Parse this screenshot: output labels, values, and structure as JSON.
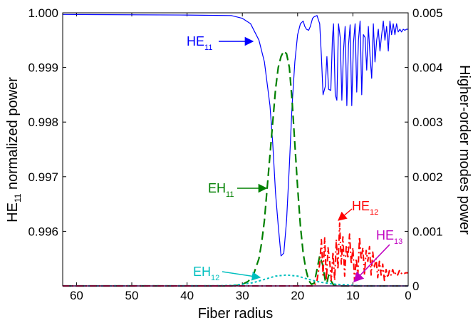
{
  "chart_data": {
    "type": "line",
    "xlabel": "Fiber radius",
    "ylabel_left": {
      "main": "HE",
      "sub": "11",
      "rest": " normalized power"
    },
    "ylabel_right": "Higher-order modes power",
    "xlim": [
      62.5,
      0
    ],
    "xticks": [
      "60",
      "50",
      "40",
      "30",
      "20",
      "10",
      "0"
    ],
    "xtick_values": [
      60,
      50,
      40,
      30,
      20,
      10,
      0
    ],
    "ylim_left": [
      0.995,
      1.0
    ],
    "yticks_left": [
      "1.000",
      "0.999",
      "0.998",
      "0.997",
      "0.996"
    ],
    "ytick_values_left": [
      1.0,
      0.999,
      0.998,
      0.997,
      0.996
    ],
    "ylim_right": [
      0,
      0.005
    ],
    "yticks_right": [
      "0",
      "0.001",
      "0.002",
      "0.003",
      "0.004",
      "0.005"
    ],
    "ytick_values_right": [
      0,
      0.001,
      0.002,
      0.003,
      0.004,
      0.005
    ],
    "colors": {
      "HE11": "#0000ff",
      "EH11": "#008000",
      "EH12": "#00bfbf",
      "HE12": "#ff0000",
      "HE13": "#bf00bf"
    },
    "series": [
      {
        "name": "HE11",
        "axis": "left",
        "style": "solid",
        "x": [
          62.5,
          40,
          32,
          30,
          28.5,
          27,
          26,
          25,
          24.5,
          24,
          23.5,
          23,
          22.5,
          22,
          21.5,
          21,
          20.5,
          20,
          19.5,
          19,
          18.7,
          18.4,
          18,
          17.7,
          17.3,
          17,
          16.5,
          16,
          15.7,
          15.4,
          15,
          14.7,
          14.4,
          14,
          13.7,
          13.5,
          13.2,
          12.9,
          12.6,
          12.3,
          12,
          11.7,
          11.4,
          11.1,
          10.8,
          10.5,
          10.2,
          9.9,
          9.6,
          9.3,
          9.0,
          8.7,
          8.4,
          8.1,
          7.8,
          7.5,
          7.2,
          6.9,
          6.6,
          6.3,
          6.0,
          5.7,
          5.4,
          5.1,
          4.8,
          4.5,
          4.2,
          3.9,
          3.6,
          3.3,
          3.0,
          2.7,
          2.4,
          2.1,
          1.8,
          1.5,
          1.2,
          0.9,
          0.6,
          0.3,
          0
        ],
        "y": [
          0.99997,
          0.99996,
          0.99995,
          0.9999,
          0.9998,
          0.9995,
          0.9991,
          0.9983,
          0.9976,
          0.9967,
          0.9961,
          0.99555,
          0.9956,
          0.9962,
          0.9972,
          0.9983,
          0.9991,
          0.9996,
          0.9998,
          0.99985,
          0.99975,
          0.9997,
          0.99968,
          0.99975,
          0.9999,
          0.99993,
          0.99995,
          0.9998,
          0.9992,
          0.9985,
          0.99865,
          0.9992,
          0.9986,
          0.99858,
          0.99955,
          0.9998,
          0.9985,
          0.9984,
          0.9998,
          0.99955,
          0.9984,
          0.9993,
          0.99975,
          0.9983,
          0.9994,
          0.99978,
          0.9983,
          0.99945,
          0.9998,
          0.99855,
          0.9995,
          0.99985,
          0.9985,
          0.9996,
          0.99955,
          0.99895,
          0.99975,
          0.9992,
          0.9988,
          0.9998,
          0.9991,
          0.9995,
          0.9997,
          0.9993,
          0.9996,
          0.99985,
          0.9995,
          0.99975,
          0.9993,
          0.99985,
          0.9996,
          0.9998,
          0.9996,
          0.9998,
          0.99965,
          0.9997,
          0.99965,
          0.9997,
          0.99968,
          0.9997,
          0.9997
        ]
      },
      {
        "name": "EH11",
        "axis": "right",
        "style": "dashed",
        "x": [
          62.5,
          32,
          31,
          30,
          29,
          28.5,
          28,
          27.5,
          27,
          26.5,
          26,
          25.5,
          25,
          24.5,
          24,
          23.5,
          23,
          22.5,
          22,
          21.5,
          21,
          20.5,
          20,
          19.5,
          19,
          18.5,
          18,
          17.5,
          17,
          16.5,
          16,
          15.5,
          15,
          14.7,
          14.4,
          14,
          13.5,
          13,
          12.5,
          0
        ],
        "y": [
          0,
          0,
          1e-05,
          3e-05,
          8e-05,
          0.00013,
          0.0002,
          0.00035,
          0.0005,
          0.0008,
          0.0012,
          0.0018,
          0.0024,
          0.003,
          0.0036,
          0.004,
          0.0042,
          0.0043,
          0.00425,
          0.004,
          0.0034,
          0.0026,
          0.0018,
          0.0011,
          0.0006,
          0.0003,
          0.0001,
          3e-05,
          5e-05,
          0.0003,
          0.00055,
          0.0004,
          0.0001,
          5e-05,
          0.0002,
          0.0001,
          2e-05,
          1e-05,
          0,
          0
        ]
      },
      {
        "name": "EH12",
        "axis": "right",
        "style": "dotted",
        "x": [
          62.5,
          34,
          32,
          30,
          28,
          26,
          24,
          22,
          20,
          18,
          16,
          14,
          13,
          12,
          11,
          10,
          9,
          8,
          0
        ],
        "y": [
          0,
          2e-06,
          1e-05,
          3e-05,
          6e-05,
          0.00012,
          0.00018,
          0.0002,
          0.00018,
          0.00012,
          7e-05,
          4e-05,
          3e-05,
          2.5e-05,
          2e-05,
          1e-05,
          5e-06,
          0,
          0
        ]
      },
      {
        "name": "HE12",
        "axis": "right",
        "style": "dashdot",
        "x": [
          62.5,
          17,
          16.5,
          16,
          15.7,
          15.4,
          15.1,
          14.8,
          14.5,
          14.2,
          13.9,
          13.6,
          13.3,
          13.0,
          12.7,
          12.4,
          12.1,
          11.8,
          11.5,
          11.2,
          10.9,
          10.6,
          10.3,
          10.0,
          9.7,
          9.4,
          9.1,
          8.8,
          8.5,
          8.2,
          7.9,
          7.6,
          7.3,
          7.0,
          6.7,
          6.4,
          6.1,
          5.8,
          5.5,
          5.2,
          4.9,
          4.6,
          4.3,
          4.0,
          3.7,
          3.4,
          3.1,
          2.8,
          2.5,
          2.2,
          1.9,
          1.6,
          1.3,
          1.0,
          0.7,
          0.4,
          0
        ],
        "y": [
          0,
          0,
          0.0001,
          0.0004,
          0.00085,
          0.0002,
          0.00088,
          0.0001,
          0.0007,
          0.00045,
          0.0001,
          0.00062,
          0.0001,
          0.00085,
          0.0003,
          0.00115,
          0.0004,
          0.0009,
          0.00018,
          0.00075,
          0.0005,
          0.00095,
          0.0004,
          0.0007,
          0.0001,
          0.0005,
          0.0002,
          0.0009,
          0.00048,
          0.0007,
          0.0002,
          0.00065,
          0.00045,
          0.00072,
          0.0002,
          0.00062,
          0.00035,
          0.0005,
          0.00015,
          0.00045,
          0.0002,
          0.0004,
          0.0001,
          0.0003,
          0.00015,
          0.00028,
          0.0002,
          0.0003,
          0.0002,
          0.00025,
          0.0002,
          0.00028,
          0.00022,
          0.00025,
          0.00023,
          0.00024,
          0.00024
        ]
      },
      {
        "name": "HE13",
        "axis": "right",
        "style": "solid",
        "x": [
          62.5,
          0
        ],
        "y": [
          0,
          0
        ]
      }
    ],
    "annotations": [
      {
        "series": "HE11",
        "main": "HE",
        "sub": "11"
      },
      {
        "series": "EH11",
        "main": "EH",
        "sub": "11"
      },
      {
        "series": "EH12",
        "main": "EH",
        "sub": "12"
      },
      {
        "series": "HE12",
        "main": "HE",
        "sub": "12"
      },
      {
        "series": "HE13",
        "main": "HE",
        "sub": "13"
      }
    ]
  }
}
